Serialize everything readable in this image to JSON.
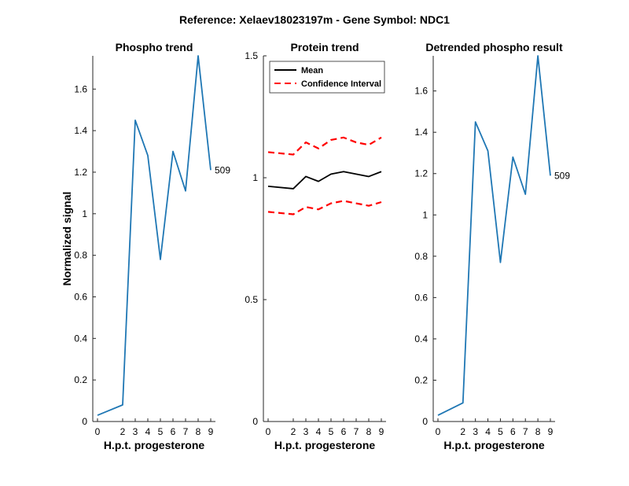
{
  "figure": {
    "title": "Reference:  Xelaev18023197m - Gene Symbol:  NDC1"
  },
  "chart_data": [
    {
      "type": "line",
      "title": "Phospho trend",
      "xlabel": "H.p.t. progesterone",
      "ylabel": "Normalized signal",
      "x": [
        0,
        2,
        3,
        4,
        5,
        6,
        7,
        8,
        9
      ],
      "x_ticks": [
        0,
        2,
        3,
        4,
        5,
        6,
        7,
        8,
        9
      ],
      "y_ticks": [
        0,
        0.2,
        0.4,
        0.6,
        0.8,
        1,
        1.2,
        1.4,
        1.6
      ],
      "y_tick_labels": [
        "0",
        "0.2",
        "0.4",
        "0.6",
        "0.8",
        "1",
        "1.2",
        "1.4",
        "1.6"
      ],
      "ylim": [
        0,
        1.76
      ],
      "series": [
        {
          "color": "#1f77b4",
          "style": "solid",
          "values": [
            0.03,
            0.08,
            1.45,
            1.28,
            0.78,
            1.3,
            1.11,
            1.76,
            1.21
          ]
        }
      ],
      "end_label": "509"
    },
    {
      "type": "line",
      "title": "Protein trend",
      "xlabel": "H.p.t. progesterone",
      "ylabel": "",
      "x": [
        0,
        2,
        3,
        4,
        5,
        6,
        7,
        8,
        9
      ],
      "x_ticks": [
        0,
        2,
        3,
        4,
        5,
        6,
        7,
        8,
        9
      ],
      "y_ticks": [
        0,
        0.5,
        1,
        1.5
      ],
      "y_tick_labels": [
        "0",
        "0.5",
        "1",
        "1.5"
      ],
      "ylim": [
        0,
        1.5
      ],
      "legend": {
        "position": "top-left",
        "entries": [
          "Mean",
          "Confidence Interval"
        ]
      },
      "series": [
        {
          "name": "Mean",
          "color": "#000000",
          "style": "solid",
          "values": [
            0.965,
            0.955,
            1.005,
            0.985,
            1.015,
            1.025,
            1.015,
            1.005,
            1.025
          ]
        },
        {
          "name": "Confidence Interval",
          "color": "#ff0000",
          "style": "dashed",
          "values": [
            1.105,
            1.095,
            1.145,
            1.12,
            1.155,
            1.165,
            1.145,
            1.135,
            1.165
          ]
        },
        {
          "color": "#ff0000",
          "style": "dashed",
          "values": [
            0.86,
            0.85,
            0.88,
            0.87,
            0.895,
            0.905,
            0.895,
            0.885,
            0.9
          ]
        }
      ]
    },
    {
      "type": "line",
      "title": "Detrended phospho result",
      "xlabel": "H.p.t. progesterone",
      "ylabel": "",
      "x": [
        0,
        2,
        3,
        4,
        5,
        6,
        7,
        8,
        9
      ],
      "x_ticks": [
        0,
        2,
        3,
        4,
        5,
        6,
        7,
        8,
        9
      ],
      "y_ticks": [
        0,
        0.2,
        0.4,
        0.6,
        0.8,
        1,
        1.2,
        1.4,
        1.6
      ],
      "y_tick_labels": [
        "0",
        "0.2",
        "0.4",
        "0.6",
        "0.8",
        "1",
        "1.2",
        "1.4",
        "1.6"
      ],
      "ylim": [
        0,
        1.77
      ],
      "series": [
        {
          "color": "#1f77b4",
          "style": "solid",
          "values": [
            0.03,
            0.09,
            1.45,
            1.31,
            0.77,
            1.28,
            1.1,
            1.77,
            1.19
          ]
        }
      ],
      "end_label": "509"
    }
  ]
}
